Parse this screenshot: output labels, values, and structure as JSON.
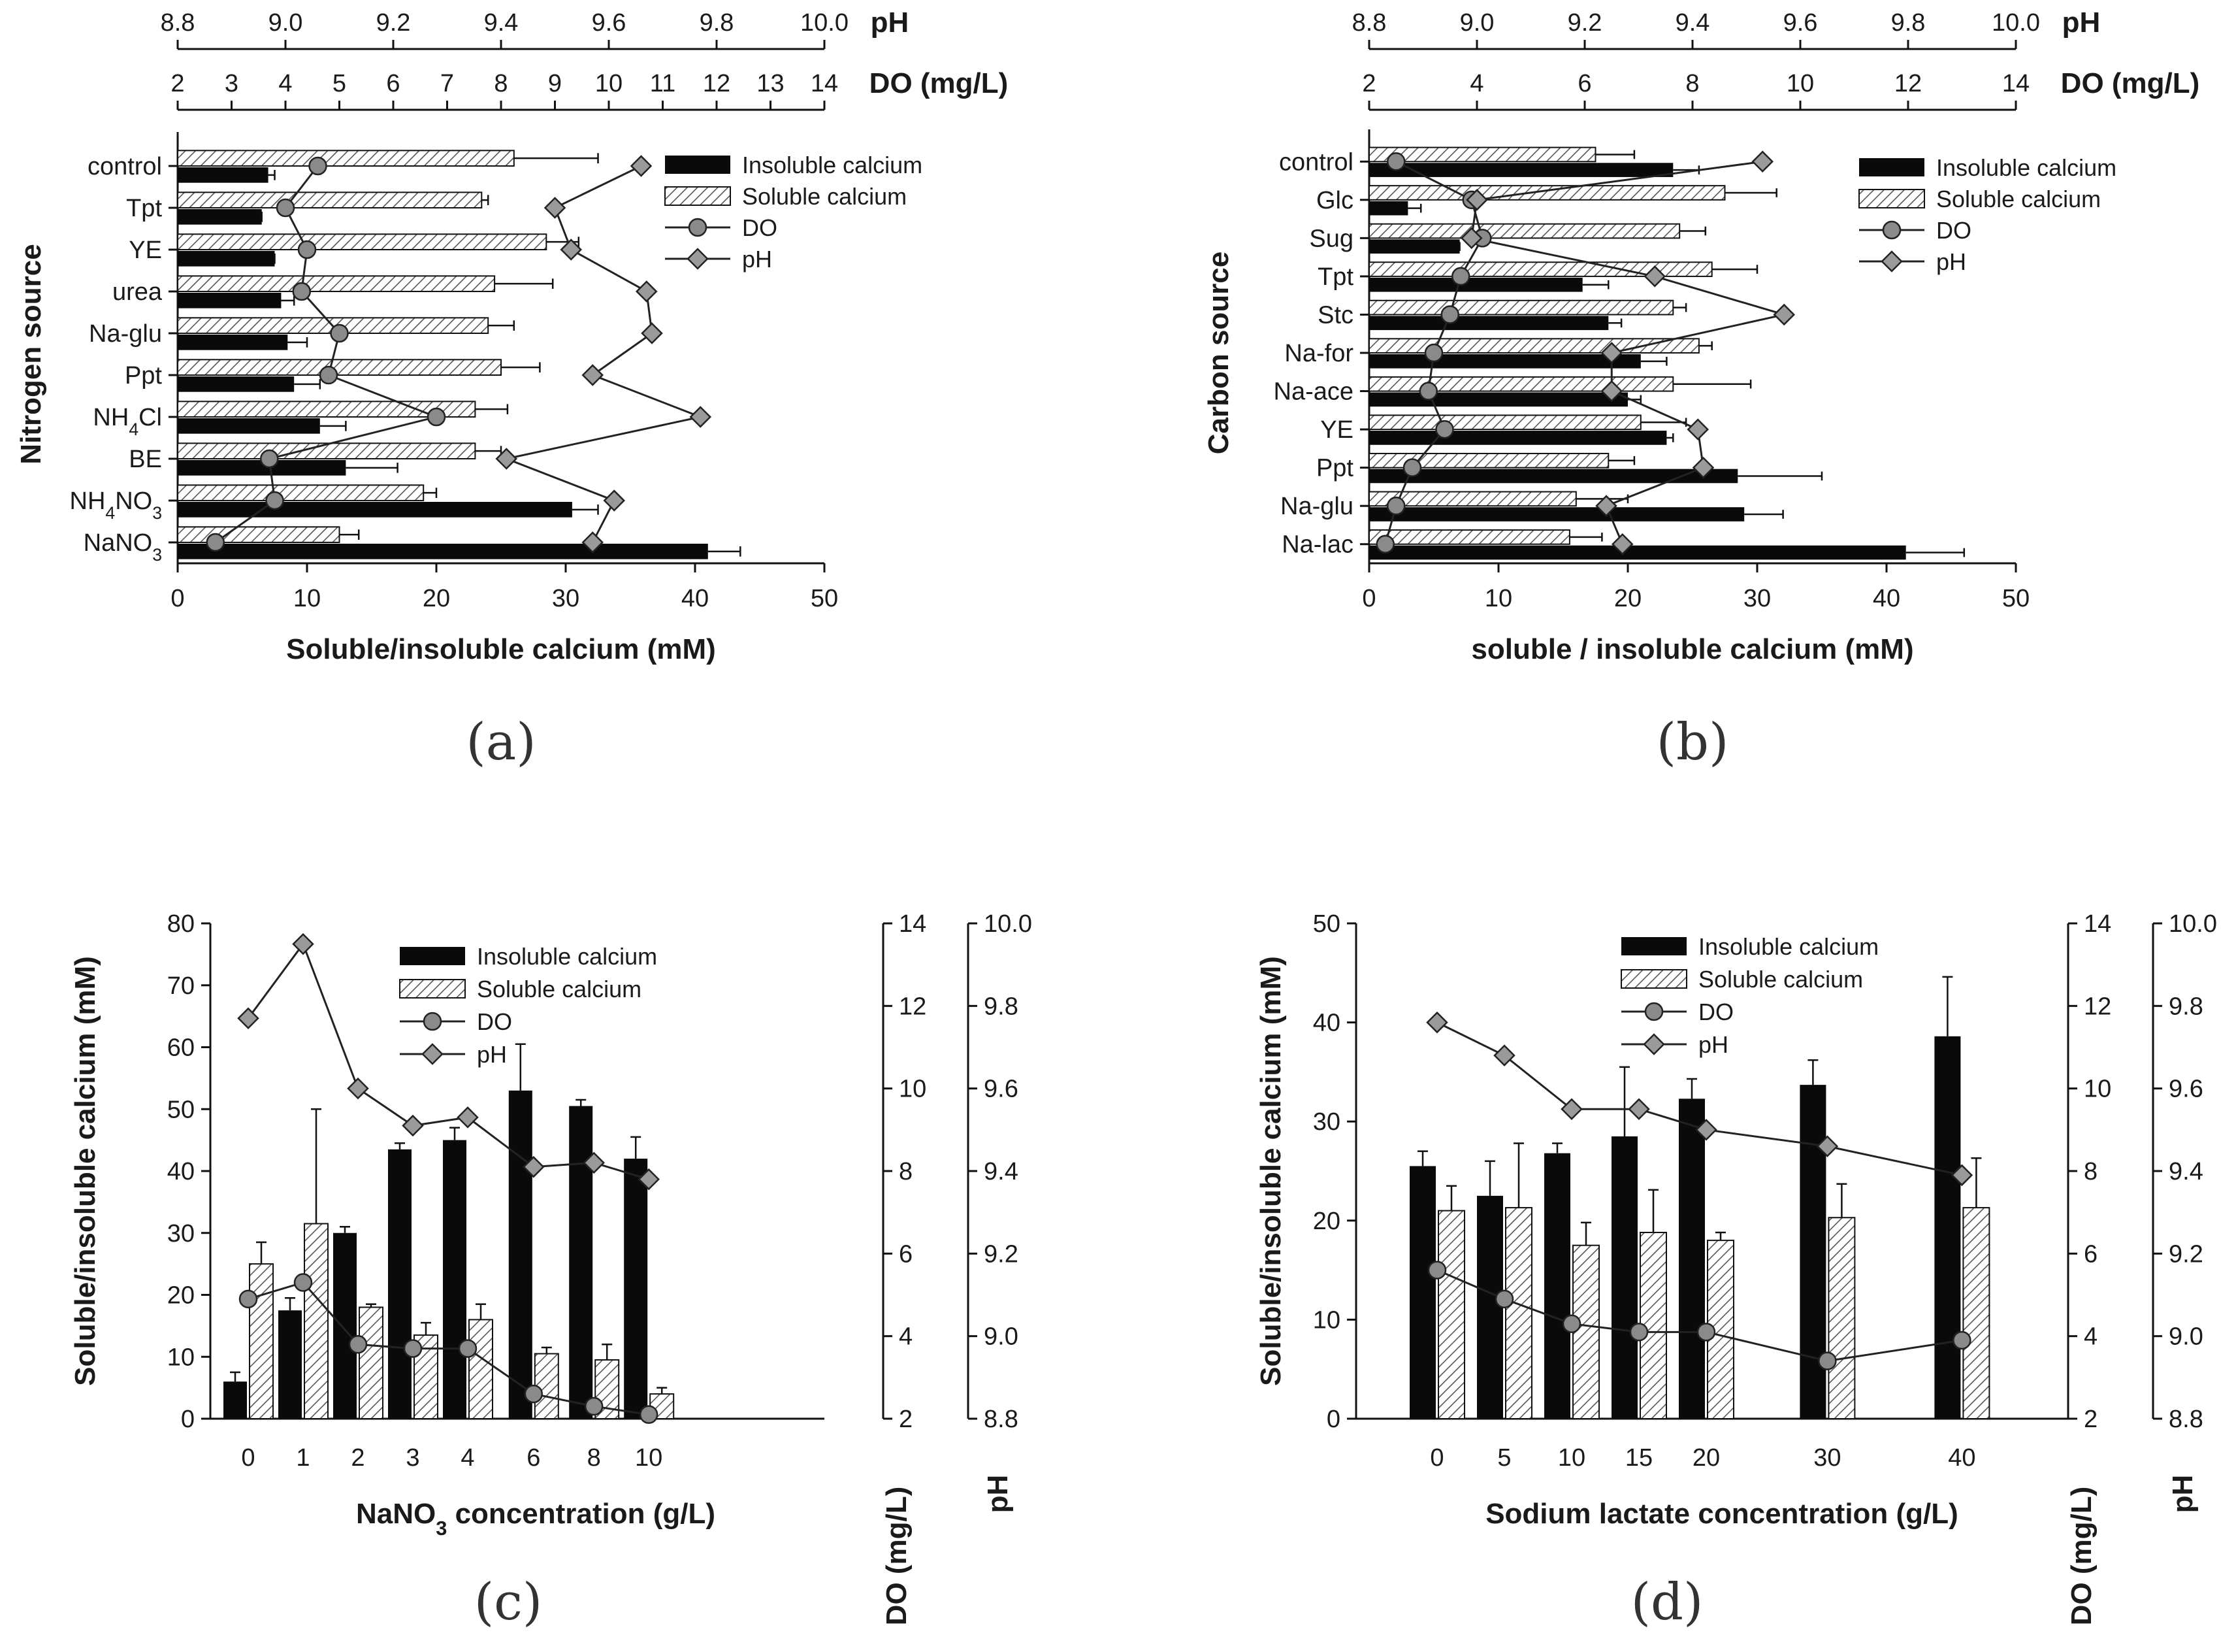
{
  "colors": {
    "insoluble": "#0a0a0a",
    "hatch": "#555555",
    "do_marker": "#8a8a8a",
    "ph_marker": "#9a9a9a",
    "line": "#222222"
  },
  "legend": {
    "insoluble": "Insoluble calcium",
    "soluble": "Soluble calcium",
    "do": "DO",
    "ph": "pH"
  },
  "chart_data": [
    {
      "id": "a",
      "panel_label": "(a)",
      "type": "bar",
      "orientation": "horizontal",
      "category_axis_label": "Nitrogen source",
      "xlabel": "Soluble/insoluble calcium (mM)",
      "xlim": [
        0,
        50
      ],
      "xticks": [
        0,
        10,
        20,
        30,
        40,
        50
      ],
      "ph_axis": {
        "label": "pH",
        "range": [
          8.8,
          10.0
        ],
        "ticks": [
          "8.8",
          "9.0",
          "9.2",
          "9.4",
          "9.6",
          "9.8",
          "10.0"
        ]
      },
      "do_axis": {
        "label": "DO (mg/L)",
        "range": [
          2,
          14
        ],
        "ticks": [
          "2",
          "3",
          "4",
          "5",
          "6",
          "7",
          "8",
          "9",
          "10",
          "11",
          "12",
          "13",
          "14"
        ]
      },
      "categories": [
        "control",
        "Tpt",
        "YE",
        "urea",
        "Na-glu",
        "Ppt",
        "NH4Cl",
        "BE",
        "NH4NO3",
        "NaNO3"
      ],
      "category_parts": [
        [
          {
            "t": "control"
          }
        ],
        [
          {
            "t": "Tpt"
          }
        ],
        [
          {
            "t": "YE"
          }
        ],
        [
          {
            "t": "urea"
          }
        ],
        [
          {
            "t": "Na-glu"
          }
        ],
        [
          {
            "t": "Ppt"
          }
        ],
        [
          {
            "t": "NH"
          },
          {
            "t": "4",
            "sub": true
          },
          {
            "t": "Cl"
          }
        ],
        [
          {
            "t": "BE"
          }
        ],
        [
          {
            "t": "NH"
          },
          {
            "t": "4",
            "sub": true
          },
          {
            "t": "NO"
          },
          {
            "t": "3",
            "sub": true
          }
        ],
        [
          {
            "t": "NaNO"
          },
          {
            "t": "3",
            "sub": true
          }
        ]
      ],
      "series": [
        {
          "name": "Soluble calcium",
          "values": [
            26,
            23.5,
            28.5,
            24.5,
            24,
            25,
            23,
            23,
            19,
            12.5
          ],
          "errors": [
            6.5,
            0.5,
            2.5,
            4.5,
            2,
            3,
            2.5,
            2,
            1,
            1.5
          ]
        },
        {
          "name": "Insoluble calcium",
          "values": [
            7,
            6.5,
            7.5,
            8,
            8.5,
            9,
            11,
            13,
            30.5,
            41
          ],
          "errors": [
            0.5,
            0,
            0,
            1,
            1.5,
            2,
            2,
            4,
            2,
            2.5
          ]
        },
        {
          "name": "DO",
          "axis": "DO (mg/L)",
          "values": [
            4.6,
            4.0,
            4.4,
            4.3,
            5.0,
            4.8,
            6.8,
            3.7,
            3.8,
            2.7
          ]
        },
        {
          "name": "pH",
          "axis": "pH",
          "values": [
            9.66,
            9.5,
            9.53,
            9.67,
            9.68,
            9.57,
            9.77,
            9.41,
            9.61,
            9.57
          ]
        }
      ]
    },
    {
      "id": "b",
      "panel_label": "(b)",
      "type": "bar",
      "orientation": "horizontal",
      "category_axis_label": "Carbon source",
      "xlabel": "soluble / insoluble calcium (mM)",
      "xlim": [
        0,
        50
      ],
      "xticks": [
        0,
        10,
        20,
        30,
        40,
        50
      ],
      "ph_axis": {
        "label": "pH",
        "range": [
          8.8,
          10.0
        ],
        "ticks": [
          "8.8",
          "9.0",
          "9.2",
          "9.4",
          "9.6",
          "9.8",
          "10.0"
        ]
      },
      "do_axis": {
        "label": "DO (mg/L)",
        "range": [
          2,
          14
        ],
        "ticks": [
          "2",
          "4",
          "6",
          "8",
          "10",
          "12",
          "14"
        ]
      },
      "categories": [
        "control",
        "Glc",
        "Sug",
        "Tpt",
        "Stc",
        "Na-for",
        "Na-ace",
        "YE",
        "Ppt",
        "Na-glu",
        "Na-lac"
      ],
      "category_parts": [
        [
          {
            "t": "control"
          }
        ],
        [
          {
            "t": "Glc"
          }
        ],
        [
          {
            "t": "Sug"
          }
        ],
        [
          {
            "t": "Tpt"
          }
        ],
        [
          {
            "t": "Stc"
          }
        ],
        [
          {
            "t": "Na-for"
          }
        ],
        [
          {
            "t": "Na-ace"
          }
        ],
        [
          {
            "t": "YE"
          }
        ],
        [
          {
            "t": "Ppt"
          }
        ],
        [
          {
            "t": "Na-glu"
          }
        ],
        [
          {
            "t": "Na-lac"
          }
        ]
      ],
      "series": [
        {
          "name": "Soluble calcium",
          "values": [
            17.5,
            27.5,
            24,
            26.5,
            23.5,
            25.5,
            23.5,
            21,
            18.5,
            16,
            15.5
          ],
          "errors": [
            3,
            4,
            2,
            3.5,
            1,
            1,
            6,
            3.5,
            2,
            4,
            2.5
          ]
        },
        {
          "name": "Insoluble calcium",
          "values": [
            23.5,
            3,
            7,
            16.5,
            18.5,
            21,
            20,
            23,
            28.5,
            29,
            41.5
          ],
          "errors": [
            2,
            1,
            0,
            2,
            1,
            2,
            1,
            0.5,
            6.5,
            3,
            4.5
          ]
        },
        {
          "name": "DO",
          "axis": "DO (mg/L)",
          "values": [
            2.5,
            3.9,
            4.1,
            3.7,
            3.5,
            3.2,
            3.1,
            3.4,
            2.8,
            2.5,
            2.3
          ]
        },
        {
          "name": "pH",
          "axis": "pH",
          "values": [
            9.53,
            9.0,
            8.99,
            9.33,
            9.57,
            9.25,
            9.25,
            9.41,
            9.42,
            9.24,
            9.27
          ]
        }
      ]
    },
    {
      "id": "c",
      "panel_label": "(c)",
      "type": "bar",
      "orientation": "vertical",
      "xlabel_parts": [
        {
          "t": "NaNO"
        },
        {
          "t": "3",
          "sub": true
        },
        {
          "t": " concentration (g/L)"
        }
      ],
      "ylabel": "Soluble/insoluble calcium (mM)",
      "ylim": [
        0,
        80
      ],
      "yticks": [
        0,
        10,
        20,
        30,
        40,
        50,
        60,
        70,
        80
      ],
      "do_axis": {
        "label": "DO (mg/L)",
        "range": [
          2,
          14
        ],
        "ticks": [
          "2",
          "4",
          "6",
          "8",
          "10",
          "12",
          "14"
        ]
      },
      "ph_axis": {
        "label": "pH",
        "range": [
          8.8,
          10.0
        ],
        "ticks": [
          "8.8",
          "9.0",
          "9.2",
          "9.4",
          "9.6",
          "9.8",
          "10.0"
        ]
      },
      "x": [
        0,
        1,
        2,
        3,
        4,
        6,
        8,
        10
      ],
      "x_labels": [
        "0",
        "1",
        "2",
        "3",
        "4",
        "6",
        "8",
        "10"
      ],
      "x_slots": [
        0,
        1,
        2,
        3,
        4,
        5.2,
        6.3,
        7.3
      ],
      "series": [
        {
          "name": "Insoluble calcium",
          "values": [
            6,
            17.5,
            30,
            43.5,
            45,
            53,
            50.5,
            42
          ],
          "errors": [
            1.5,
            2,
            1,
            1,
            2,
            7.5,
            1,
            3.5
          ]
        },
        {
          "name": "Soluble calcium",
          "values": [
            25,
            31.5,
            18,
            13.5,
            16,
            10.5,
            9.5,
            4
          ],
          "errors": [
            3.5,
            18.5,
            0.5,
            2,
            2.5,
            1,
            2.5,
            1
          ]
        },
        {
          "name": "DO",
          "axis": "DO (mg/L)",
          "values": [
            4.9,
            5.3,
            3.8,
            3.7,
            3.7,
            2.6,
            2.3,
            2.1
          ]
        },
        {
          "name": "pH",
          "axis": "pH",
          "values": [
            9.77,
            9.95,
            9.6,
            9.51,
            9.53,
            9.41,
            9.42,
            9.38
          ]
        }
      ]
    },
    {
      "id": "d",
      "panel_label": "(d)",
      "type": "bar",
      "orientation": "vertical",
      "xlabel": "Sodium lactate concentration (g/L)",
      "ylabel": "Soluble/insoluble calcium (mM)",
      "ylim": [
        0,
        50
      ],
      "yticks": [
        0,
        10,
        20,
        30,
        40,
        50
      ],
      "do_axis": {
        "label": "DO (mg/L)",
        "range": [
          2,
          14
        ],
        "ticks": [
          "2",
          "4",
          "6",
          "8",
          "10",
          "12",
          "14"
        ]
      },
      "ph_axis": {
        "label": "pH",
        "range": [
          8.8,
          10.0
        ],
        "ticks": [
          "8.8",
          "9.0",
          "9.2",
          "9.4",
          "9.6",
          "9.8",
          "10.0"
        ]
      },
      "x": [
        0,
        5,
        10,
        15,
        20,
        30,
        40
      ],
      "x_labels": [
        "0",
        "5",
        "10",
        "15",
        "20",
        "30",
        "40"
      ],
      "x_slots": [
        0,
        1,
        2,
        3,
        4,
        5.8,
        7.8
      ],
      "series": [
        {
          "name": "Insoluble calcium",
          "values": [
            25.5,
            22.5,
            26.8,
            28.5,
            32.3,
            33.7,
            38.6
          ],
          "errors": [
            1.5,
            3.5,
            1,
            7,
            2,
            2.5,
            6
          ]
        },
        {
          "name": "Soluble calcium",
          "values": [
            21,
            21.3,
            17.5,
            18.8,
            18,
            20.3,
            21.3
          ],
          "errors": [
            2.5,
            6.5,
            2.3,
            4.3,
            0.8,
            3.4,
            5
          ]
        },
        {
          "name": "DO",
          "axis": "DO (mg/L)",
          "values": [
            5.6,
            4.9,
            4.3,
            4.1,
            4.1,
            3.4,
            3.9
          ]
        },
        {
          "name": "pH",
          "axis": "pH",
          "values": [
            9.76,
            9.68,
            9.55,
            9.55,
            9.5,
            9.46,
            9.39
          ]
        }
      ]
    }
  ]
}
